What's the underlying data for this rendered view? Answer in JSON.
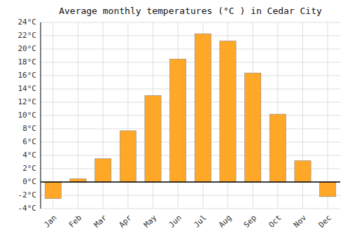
{
  "chart_data": {
    "type": "bar",
    "title": "Average monthly temperatures (°C ) in Cedar City",
    "categories": [
      "Jan",
      "Feb",
      "Mar",
      "Apr",
      "May",
      "Jun",
      "Jul",
      "Aug",
      "Sep",
      "Oct",
      "Nov",
      "Dec"
    ],
    "values": [
      -2.5,
      0.5,
      3.5,
      7.7,
      13.0,
      18.5,
      22.3,
      21.2,
      16.4,
      10.2,
      3.2,
      -2.2
    ],
    "color": "#FFA726",
    "ylim": [
      -4,
      24
    ],
    "yticks": [
      {
        "value": -4,
        "label": "-4°C"
      },
      {
        "value": -2,
        "label": "-2°C"
      },
      {
        "value": 0,
        "label": "0°C"
      },
      {
        "value": 2,
        "label": "2°C"
      },
      {
        "value": 4,
        "label": "4°C"
      },
      {
        "value": 6,
        "label": "6°C"
      },
      {
        "value": 8,
        "label": "8°C"
      },
      {
        "value": 10,
        "label": "10°C"
      },
      {
        "value": 12,
        "label": "12°C"
      },
      {
        "value": 14,
        "label": "14°C"
      },
      {
        "value": 16,
        "label": "16°C"
      },
      {
        "value": 18,
        "label": "18°C"
      },
      {
        "value": 20,
        "label": "20°C"
      },
      {
        "value": 22,
        "label": "22°C"
      },
      {
        "value": 24,
        "label": "24°C"
      }
    ],
    "grid": true
  }
}
